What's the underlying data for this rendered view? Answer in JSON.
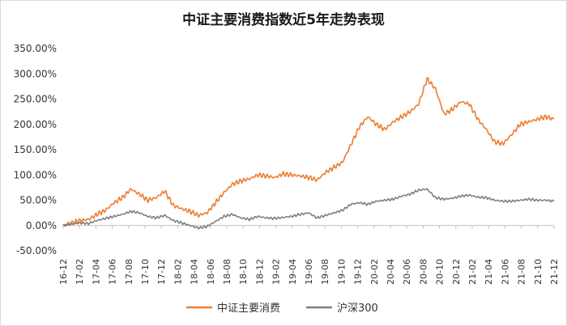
{
  "chart_data": {
    "type": "line",
    "title": "中证主要消费指数近5年走势表现",
    "xlabel": "",
    "ylabel": "",
    "ylim": [
      -50,
      350
    ],
    "yticks": [
      "350.00%",
      "300.00%",
      "250.00%",
      "200.00%",
      "150.00%",
      "100.00%",
      "50.00%",
      "0.00%",
      "-50.00%"
    ],
    "ytick_values": [
      350,
      300,
      250,
      200,
      150,
      100,
      50,
      0,
      -50
    ],
    "x_labels": [
      "16-12",
      "17-02",
      "17-04",
      "17-06",
      "17-08",
      "17-10",
      "17-12",
      "18-02",
      "18-04",
      "18-06",
      "18-08",
      "18-10",
      "18-12",
      "19-02",
      "19-04",
      "19-06",
      "19-08",
      "19-10",
      "19-12",
      "20-02",
      "20-04",
      "20-06",
      "20-08",
      "20-10",
      "20-12",
      "21-02",
      "21-04",
      "21-06",
      "21-08",
      "21-10",
      "21-12"
    ],
    "grid": false,
    "legend_position": "bottom",
    "series": [
      {
        "name": "中证主要消费",
        "color": "#ED7D31",
        "values": [
          0,
          5,
          10,
          12,
          22,
          30,
          45,
          55,
          72,
          62,
          50,
          55,
          68,
          40,
          33,
          28,
          20,
          25,
          45,
          65,
          82,
          88,
          92,
          100,
          98,
          95,
          102,
          100,
          98,
          95,
          90,
          105,
          115,
          125,
          160,
          195,
          215,
          200,
          190,
          205,
          215,
          225,
          240,
          290,
          270,
          220,
          230,
          245,
          240,
          210,
          190,
          165,
          162,
          180,
          200,
          205,
          210,
          215,
          210
        ]
      },
      {
        "name": "沪深300",
        "color": "#7F7F7F",
        "values": [
          0,
          3,
          5,
          4,
          10,
          14,
          18,
          22,
          28,
          25,
          18,
          15,
          20,
          10,
          5,
          0,
          -5,
          -2,
          8,
          18,
          22,
          15,
          12,
          18,
          15,
          14,
          16,
          18,
          22,
          25,
          15,
          20,
          25,
          30,
          42,
          45,
          42,
          48,
          50,
          52,
          58,
          62,
          70,
          72,
          55,
          52,
          54,
          58,
          60,
          56,
          55,
          50,
          48,
          48,
          50,
          52,
          50,
          50,
          48
        ]
      }
    ]
  }
}
